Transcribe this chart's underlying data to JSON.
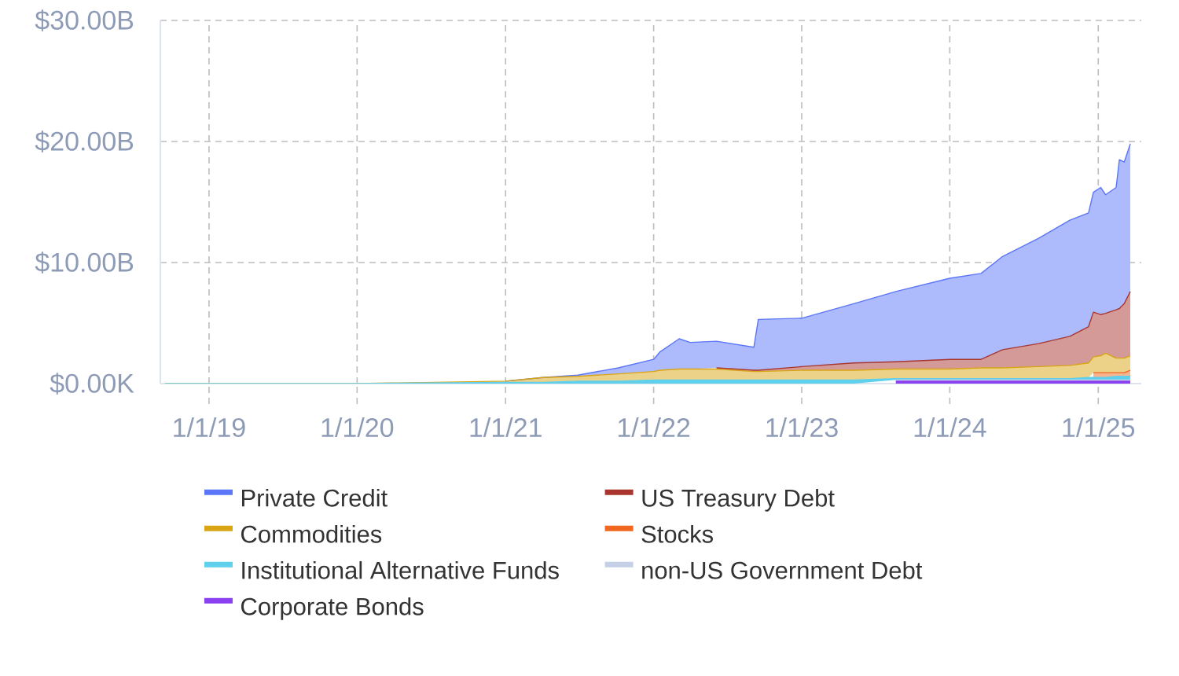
{
  "chart_data": {
    "type": "area",
    "stacked": true,
    "x": [
      "2018-09-15",
      "2020-01-01",
      "2021-01-01",
      "2021-04-03",
      "2021-06-28",
      "2021-10-06",
      "2022-01-01",
      "2022-01-16",
      "2022-03-05",
      "2022-04-01",
      "2022-06-05",
      "2022-09-05",
      "2022-09-16",
      "2023-01-01",
      "2023-05-09",
      "2023-08-21",
      "2024-01-01",
      "2024-03-18",
      "2024-05-10",
      "2024-08-07",
      "2024-10-23",
      "2024-12-08",
      "2024-12-20",
      "2025-01-07",
      "2025-01-19",
      "2025-02-14",
      "2025-02-22",
      "2025-03-06",
      "2025-03-21"
    ],
    "series": [
      {
        "name": "Corporate Bonds",
        "color": "#8a3ff0",
        "values": [
          null,
          null,
          null,
          null,
          null,
          null,
          null,
          null,
          null,
          null,
          null,
          null,
          null,
          null,
          null,
          0.2,
          0.2,
          0.2,
          0.2,
          0.2,
          0.2,
          0.2,
          0.2,
          0.2,
          0.2,
          0.2,
          0.2,
          0.2,
          0.2
        ]
      },
      {
        "name": "non-US Government Debt",
        "color": "#c5d0e6",
        "values": [
          null,
          null,
          null,
          null,
          null,
          null,
          null,
          null,
          null,
          null,
          null,
          null,
          null,
          null,
          null,
          0.1,
          0.1,
          0.1,
          0.1,
          0.1,
          0.1,
          0.1,
          0.1,
          0.1,
          0.1,
          0.1,
          0.1,
          0.1,
          0.1
        ]
      },
      {
        "name": "Institutional Alternative Funds",
        "color": "#5fd0ec",
        "values": [
          0,
          0,
          0.1,
          0.1,
          0.2,
          0.2,
          0.3,
          0.3,
          0.3,
          0.3,
          0.3,
          0.3,
          0.3,
          0.3,
          0.3,
          0.1,
          0.1,
          0.1,
          0.1,
          0.1,
          0.1,
          0.2,
          0.2,
          0.2,
          0.2,
          0.3,
          0.3,
          0.3,
          0.3
        ]
      },
      {
        "name": "Stocks",
        "color": "#f2671f",
        "values": [
          null,
          null,
          null,
          null,
          null,
          null,
          null,
          null,
          null,
          null,
          null,
          null,
          null,
          null,
          null,
          null,
          null,
          null,
          null,
          null,
          null,
          null,
          0.4,
          0.4,
          0.4,
          0.3,
          0.3,
          0.3,
          0.5
        ]
      },
      {
        "name": "Commodities",
        "color": "#d9a514",
        "values": [
          0,
          0,
          0.1,
          0.4,
          0.4,
          0.6,
          0.7,
          0.8,
          0.9,
          0.9,
          0.9,
          0.7,
          0.7,
          0.8,
          0.8,
          0.8,
          0.8,
          0.9,
          0.9,
          1.0,
          1.1,
          1.2,
          1.3,
          1.4,
          1.6,
          1.2,
          1.2,
          1.2,
          1.2
        ]
      },
      {
        "name": "US Treasury Debt",
        "color": "#a8362f",
        "values": [
          null,
          null,
          null,
          null,
          null,
          null,
          null,
          null,
          null,
          null,
          0.1,
          0.1,
          0.1,
          0.3,
          0.6,
          0.6,
          0.8,
          0.7,
          1.5,
          1.9,
          2.4,
          3.0,
          3.7,
          3.4,
          3.3,
          4.0,
          4.1,
          4.5,
          5.3
        ]
      },
      {
        "name": "Private Credit",
        "color": "#5b76f7",
        "values": [
          null,
          null,
          0,
          0,
          0.1,
          0.5,
          1.0,
          1.5,
          2.5,
          2.2,
          2.2,
          1.9,
          4.2,
          4.0,
          4.9,
          5.8,
          6.7,
          7.1,
          7.7,
          8.7,
          9.6,
          9.4,
          9.9,
          10.5,
          9.8,
          10.1,
          12.3,
          11.7,
          12.2
        ]
      }
    ],
    "xlim": [
      "2018-09-03",
      "2025-04-17"
    ],
    "xticks": [
      {
        "value": "2019-01-01",
        "label": "1/1/19"
      },
      {
        "value": "2020-01-01",
        "label": "1/1/20"
      },
      {
        "value": "2021-01-01",
        "label": "1/1/21"
      },
      {
        "value": "2022-01-01",
        "label": "1/1/22"
      },
      {
        "value": "2023-01-01",
        "label": "1/1/23"
      },
      {
        "value": "2024-01-01",
        "label": "1/1/24"
      },
      {
        "value": "2025-01-01",
        "label": "1/1/25"
      }
    ],
    "ylim": [
      0,
      30
    ],
    "yticks": [
      {
        "value": 0,
        "label": "$0.00K"
      },
      {
        "value": 10,
        "label": "$10.00B"
      },
      {
        "value": 20,
        "label": "$20.00B"
      },
      {
        "value": 30,
        "label": "$30.00B"
      }
    ],
    "grid": true,
    "legend": "bottom"
  }
}
